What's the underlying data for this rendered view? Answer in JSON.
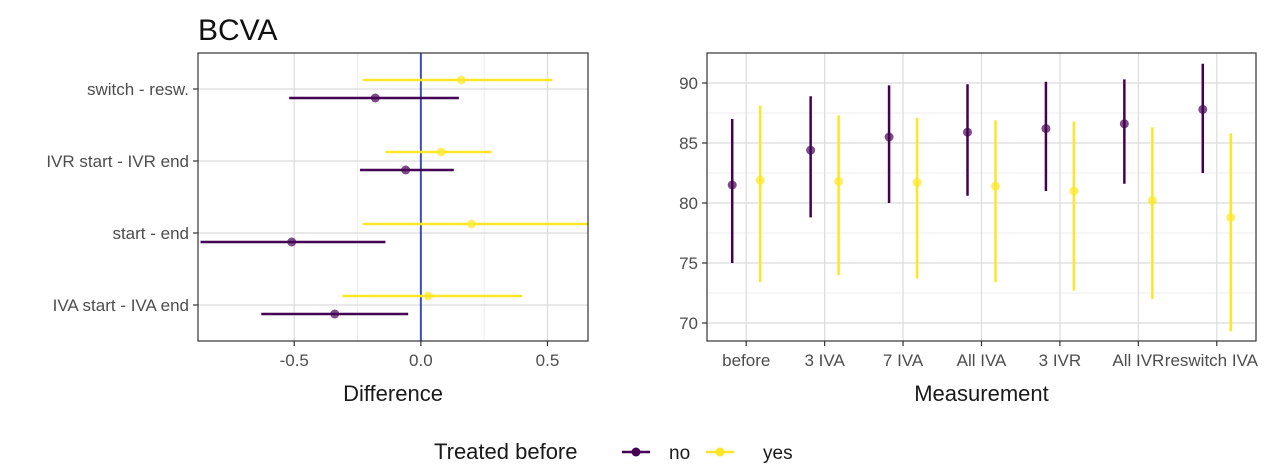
{
  "title": "BCVA",
  "legend": {
    "title": "Treated before",
    "items": [
      {
        "label": "no",
        "color": "#440154"
      },
      {
        "label": "yes",
        "color": "#FDE725"
      }
    ]
  },
  "chart_data": [
    {
      "type": "scatter",
      "subtype": "forest-plot-horizontal-intervals",
      "xlabel": "Difference",
      "ylabel": "",
      "categories": [
        "IVA start - IVA end",
        "start - end",
        "IVR start - IVR end",
        "switch - resw."
      ],
      "xlim": [
        -0.88,
        0.66
      ],
      "xticks": [
        -0.5,
        0.0,
        0.5
      ],
      "xtick_labels": [
        "-0.5",
        "0.0",
        "0.5"
      ],
      "reference_line": {
        "x": 0,
        "color": "#3b4cc0"
      },
      "grid": true,
      "series": [
        {
          "name": "no",
          "color": "#440154",
          "points": [
            {
              "category": "IVA start - IVA end",
              "estimate": -0.34,
              "lower": -0.63,
              "upper": -0.05
            },
            {
              "category": "start - end",
              "estimate": -0.51,
              "lower": -0.87,
              "upper": -0.14
            },
            {
              "category": "IVR start - IVR end",
              "estimate": -0.06,
              "lower": -0.24,
              "upper": 0.13
            },
            {
              "category": "switch - resw.",
              "estimate": -0.18,
              "lower": -0.52,
              "upper": 0.15
            }
          ]
        },
        {
          "name": "yes",
          "color": "#FDE725",
          "points": [
            {
              "category": "IVA start - IVA end",
              "estimate": 0.03,
              "lower": -0.31,
              "upper": 0.4
            },
            {
              "category": "start - end",
              "estimate": 0.2,
              "lower": -0.23,
              "upper": 0.66
            },
            {
              "category": "IVR start - IVR end",
              "estimate": 0.08,
              "lower": -0.14,
              "upper": 0.28
            },
            {
              "category": "switch - resw.",
              "estimate": 0.16,
              "lower": -0.23,
              "upper": 0.52
            }
          ]
        }
      ]
    },
    {
      "type": "scatter",
      "subtype": "point-range-vertical",
      "xlabel": "Measurement",
      "ylabel": "",
      "categories": [
        "before",
        "3 IVA",
        "7 IVA",
        "All IVA",
        "3 IVR",
        "All IVR",
        "reswitch IVA"
      ],
      "ylim": [
        68.5,
        92.5
      ],
      "yticks": [
        70,
        75,
        80,
        85,
        90
      ],
      "grid": true,
      "series": [
        {
          "name": "no",
          "color": "#440154",
          "points": [
            {
              "category": "before",
              "estimate": 81.5,
              "lower": 75.0,
              "upper": 87.0
            },
            {
              "category": "3 IVA",
              "estimate": 84.4,
              "lower": 78.8,
              "upper": 88.9
            },
            {
              "category": "7 IVA",
              "estimate": 85.5,
              "lower": 80.0,
              "upper": 89.8
            },
            {
              "category": "All IVA",
              "estimate": 85.9,
              "lower": 80.6,
              "upper": 89.9
            },
            {
              "category": "3 IVR",
              "estimate": 86.2,
              "lower": 81.0,
              "upper": 90.1
            },
            {
              "category": "All IVR",
              "estimate": 86.6,
              "lower": 81.6,
              "upper": 90.3
            },
            {
              "category": "reswitch IVA",
              "estimate": 87.8,
              "lower": 82.5,
              "upper": 91.6
            }
          ]
        },
        {
          "name": "yes",
          "color": "#FDE725",
          "points": [
            {
              "category": "before",
              "estimate": 81.9,
              "lower": 73.4,
              "upper": 88.1
            },
            {
              "category": "3 IVA",
              "estimate": 81.8,
              "lower": 74.0,
              "upper": 87.3
            },
            {
              "category": "7 IVA",
              "estimate": 81.7,
              "lower": 73.7,
              "upper": 87.1
            },
            {
              "category": "All IVA",
              "estimate": 81.4,
              "lower": 73.4,
              "upper": 86.9
            },
            {
              "category": "3 IVR",
              "estimate": 81.0,
              "lower": 72.7,
              "upper": 86.8
            },
            {
              "category": "All IVR",
              "estimate": 80.2,
              "lower": 72.0,
              "upper": 86.3
            },
            {
              "category": "reswitch IVA",
              "estimate": 78.8,
              "lower": 69.3,
              "upper": 85.8
            }
          ]
        }
      ]
    }
  ]
}
